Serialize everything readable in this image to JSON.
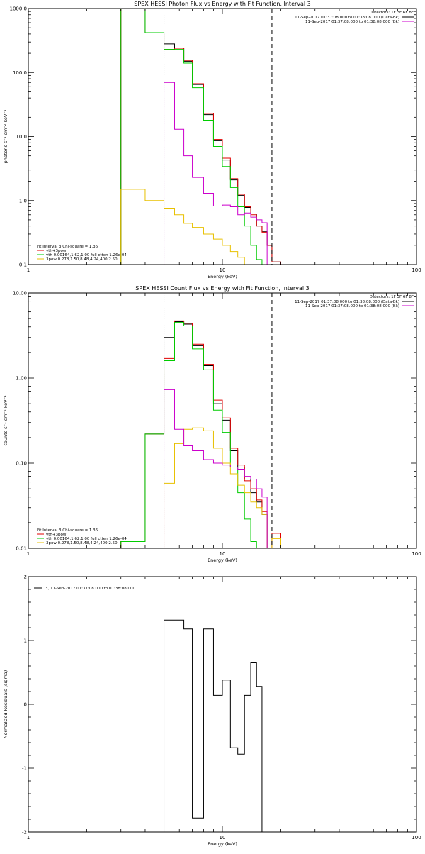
{
  "chart_data": [
    {
      "type": "line",
      "title": "SPEX HESSI Photon Flux vs Energy with Fit Function, Interval 3",
      "xlabel": "Energy (keV)",
      "ylabel": "photons s⁻¹ cm⁻² keV⁻¹",
      "xscale": "log",
      "yscale": "log",
      "xlim": [
        1,
        100
      ],
      "ylim": [
        0.1,
        1000
      ],
      "x_tick_labels": [
        "1",
        "10",
        "100"
      ],
      "y_tick_labels": [
        "0.1",
        "1.0",
        "10.0",
        "100.0",
        "1000.0"
      ],
      "y_ticks": [
        0.1,
        1,
        10,
        100,
        1000
      ],
      "vlines": [
        {
          "x": 5.0,
          "style": "dotted"
        },
        {
          "x": 18.0,
          "style": "dashed"
        }
      ],
      "legend_top_right": {
        "header": "Detectors: 1F 3F 6F 8F",
        "entries": [
          {
            "text": "11-Sep-2017 01:37:08.000 to 01:38:08.000 (Data-Bk)",
            "color": "#000000"
          },
          {
            "text": "11-Sep-2017 01:37:08.000 to 01:38:08.000 (Bk)",
            "color": "#cc00cc"
          }
        ]
      },
      "legend_bottom_left": {
        "header": "Fit Interval 3   Chi-square = 1.36",
        "entries": [
          {
            "text": "vth+3pow",
            "color": "#e00000"
          },
          {
            "text": "vth 0.00164,1.62,1.00  full ctten 1.26e-04",
            "color": "#00cc00"
          },
          {
            "text": "3pow 0.278,1.50,8.48,4.24,400,2.50",
            "color": "#e8c000"
          }
        ]
      },
      "bin_edges": [
        3,
        4,
        5,
        5.67,
        6.33,
        7,
        8,
        9,
        10,
        11,
        12,
        13,
        14,
        15,
        16,
        17,
        18,
        20
      ],
      "series": [
        {
          "name": "Data-Bk",
          "color": "#000000",
          "values": [
            1000,
            420,
            280,
            240,
            150,
            65,
            22,
            8.6,
            4.3,
            2.1,
            1.2,
            0.78,
            0.62,
            0.4,
            0.33,
            0.2,
            0.11
          ]
        },
        {
          "name": "vth+3pow",
          "color": "#e00000",
          "values": [
            1000,
            420,
            230,
            240,
            155,
            67,
            23,
            9.0,
            4.6,
            2.2,
            1.25,
            0.8,
            0.6,
            0.4,
            0.32,
            0.2,
            0.11
          ]
        },
        {
          "name": "vth",
          "color": "#00cc00",
          "values": [
            1000,
            420,
            230,
            230,
            140,
            58,
            18,
            7.0,
            3.4,
            1.6,
            0.8,
            0.4,
            0.2,
            0.12,
            0.1,
            0.1,
            0.1
          ]
        },
        {
          "name": "3pow",
          "color": "#e8c000",
          "values": [
            1.5,
            1.0,
            0.76,
            0.6,
            0.44,
            0.38,
            0.3,
            0.25,
            0.2,
            0.16,
            0.13,
            0.1,
            0.1,
            0.1,
            0.1,
            0.1,
            0.1
          ]
        },
        {
          "name": "Bk",
          "color": "#cc00cc",
          "values": [
            0.1,
            0.1,
            70,
            13,
            5.0,
            2.3,
            1.3,
            0.82,
            0.85,
            0.8,
            0.6,
            0.64,
            0.55,
            0.5,
            0.45,
            0.1,
            0.1
          ]
        }
      ]
    },
    {
      "type": "line",
      "title": "SPEX HESSI Count Flux vs Energy with Fit Function, Interval 3",
      "xlabel": "Energy (keV)",
      "ylabel": "counts s⁻¹ cm⁻² keV⁻¹",
      "xscale": "log",
      "yscale": "log",
      "xlim": [
        1,
        100
      ],
      "ylim": [
        0.01,
        10
      ],
      "x_tick_labels": [
        "1",
        "10",
        "100"
      ],
      "y_tick_labels": [
        "0.01",
        "0.10",
        "1.00",
        "10.00"
      ],
      "y_ticks": [
        0.01,
        0.1,
        1,
        10
      ],
      "vlines": [
        {
          "x": 5.0,
          "style": "dotted"
        },
        {
          "x": 18.0,
          "style": "dashed"
        }
      ],
      "legend_top_right": {
        "header": "Detectors: 1F 3F 6F 8F",
        "entries": [
          {
            "text": "11-Sep-2017 01:37:08.000 to 01:38:08.000 (Data-Bk)",
            "color": "#000000"
          },
          {
            "text": "11-Sep-2017 01:37:08.000 to 01:38:08.000 (Bk)",
            "color": "#cc00cc"
          }
        ]
      },
      "legend_bottom_left": {
        "header": "Fit Interval 3   Chi-square = 1.36",
        "entries": [
          {
            "text": "vth+3pow",
            "color": "#e00000"
          },
          {
            "text": "vth 0.00164,1.62,1.00  full ctten 1.26e-04",
            "color": "#00cc00"
          },
          {
            "text": "3pow 0.278,1.50,8.48,4.24,400,2.50",
            "color": "#e8c000"
          }
        ]
      },
      "bin_edges": [
        3,
        4,
        5,
        5.67,
        6.33,
        7,
        8,
        9,
        10,
        11,
        12,
        13,
        14,
        15,
        16,
        17,
        18,
        20
      ],
      "series": [
        {
          "name": "Data-Bk",
          "color": "#000000",
          "values": [
            0.012,
            0.22,
            3.0,
            4.6,
            4.3,
            2.4,
            1.4,
            0.5,
            0.32,
            0.14,
            0.09,
            0.065,
            0.045,
            0.035,
            0.025,
            0.01,
            0.014
          ]
        },
        {
          "name": "vth+3pow",
          "color": "#e00000",
          "values": [
            0.012,
            0.22,
            1.7,
            4.7,
            4.4,
            2.5,
            1.45,
            0.55,
            0.34,
            0.15,
            0.095,
            0.062,
            0.05,
            0.037,
            0.027,
            0.01,
            0.015
          ]
        },
        {
          "name": "vth",
          "color": "#00cc00",
          "values": [
            0.012,
            0.22,
            1.6,
            4.5,
            4.1,
            2.2,
            1.25,
            0.42,
            0.23,
            0.09,
            0.045,
            0.022,
            0.012,
            0.01,
            0.01,
            0.01,
            0.01
          ]
        },
        {
          "name": "3pow",
          "color": "#e8c000",
          "values": [
            0.01,
            0.01,
            0.058,
            0.17,
            0.25,
            0.26,
            0.24,
            0.15,
            0.1,
            0.075,
            0.055,
            0.045,
            0.035,
            0.03,
            0.025,
            0.01,
            0.013
          ]
        },
        {
          "name": "Bk",
          "color": "#cc00cc",
          "values": [
            0.01,
            0.01,
            0.73,
            0.25,
            0.16,
            0.14,
            0.11,
            0.1,
            0.095,
            0.09,
            0.085,
            0.07,
            0.065,
            0.05,
            0.04,
            0.01,
            0.01
          ]
        }
      ]
    },
    {
      "type": "line",
      "title": "",
      "xlabel": "Energy (keV)",
      "ylabel": "Normalized Residuals (sigma)",
      "xscale": "log",
      "yscale": "linear",
      "xlim": [
        1,
        100
      ],
      "ylim": [
        -2,
        2
      ],
      "x_tick_labels": [
        "1",
        "10",
        "100"
      ],
      "y_tick_labels": [
        "-2",
        "-1",
        "0",
        "1",
        "2"
      ],
      "y_ticks": [
        -2,
        -1,
        0,
        1,
        2
      ],
      "legend": {
        "text": "3, 11-Sep-2017 01:37:08.000 to 01:38:08.000",
        "color": "#000000"
      },
      "bin_edges": [
        5,
        5.67,
        6.33,
        7,
        8,
        9,
        10,
        11,
        12,
        13,
        14,
        15,
        16,
        17,
        18
      ],
      "series": [
        {
          "color": "#000000",
          "values": [
            1.32,
            1.32,
            1.18,
            -1.78,
            1.18,
            0.14,
            0.38,
            -0.68,
            -0.78,
            0.14,
            0.65,
            0.28,
            -2.0,
            -2.0
          ]
        }
      ]
    }
  ]
}
